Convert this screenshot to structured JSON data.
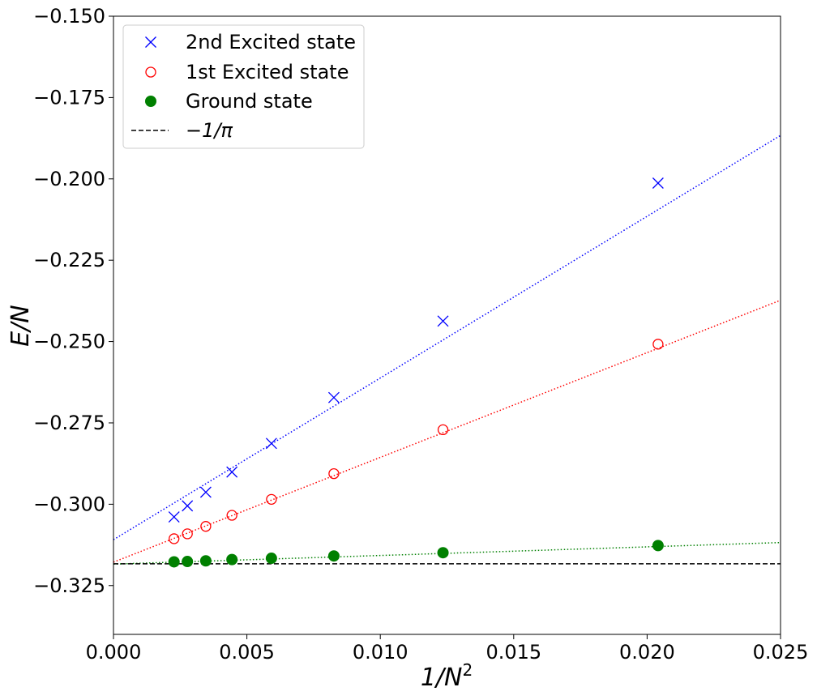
{
  "chart_data": {
    "type": "scatter",
    "xlabel": "1/N²",
    "ylabel": "E/N",
    "xlim": [
      0.0,
      0.025
    ],
    "ylim": [
      -0.34,
      -0.15
    ],
    "grid": false,
    "legend_position": "top-left",
    "x_ticks": [
      {
        "value": 0.0,
        "label": "0.000"
      },
      {
        "value": 0.005,
        "label": "0.005"
      },
      {
        "value": 0.01,
        "label": "0.010"
      },
      {
        "value": 0.015,
        "label": "0.015"
      },
      {
        "value": 0.02,
        "label": "0.020"
      },
      {
        "value": 0.025,
        "label": "0.025"
      }
    ],
    "y_ticks": [
      {
        "value": -0.15,
        "label": "−0.150"
      },
      {
        "value": -0.175,
        "label": "−0.175"
      },
      {
        "value": -0.2,
        "label": "−0.200"
      },
      {
        "value": -0.225,
        "label": "−0.225"
      },
      {
        "value": -0.25,
        "label": "−0.250"
      },
      {
        "value": -0.275,
        "label": "−0.275"
      },
      {
        "value": -0.3,
        "label": "−0.300"
      },
      {
        "value": -0.325,
        "label": "−0.325"
      }
    ],
    "series": [
      {
        "name": "2nd Excited state",
        "marker": "x",
        "color": "#0000ff",
        "x": [
          0.00227,
          0.00277,
          0.00346,
          0.00444,
          0.00592,
          0.00826,
          0.01235,
          0.02041
        ],
        "y": [
          -0.3039,
          -0.3005,
          -0.2963,
          -0.2901,
          -0.2813,
          -0.2672,
          -0.2437,
          -0.2013
        ],
        "fit": {
          "intercept": -0.3109,
          "slope": 4.97
        }
      },
      {
        "name": "1st Excited state",
        "marker": "o-open",
        "color": "#ff0000",
        "x": [
          0.00227,
          0.00277,
          0.00346,
          0.00444,
          0.00592,
          0.00826,
          0.01235,
          0.02041
        ],
        "y": [
          -0.3106,
          -0.3091,
          -0.3068,
          -0.3034,
          -0.2985,
          -0.2906,
          -0.2771,
          -0.2508
        ],
        "fit": {
          "intercept": -0.3178,
          "slope": 3.22
        }
      },
      {
        "name": "Ground state",
        "marker": "o-filled",
        "color": "#008000",
        "x": [
          0.00227,
          0.00277,
          0.00346,
          0.00444,
          0.00592,
          0.00826,
          0.01235,
          0.02041
        ],
        "y": [
          -0.3177,
          -0.3176,
          -0.3174,
          -0.317,
          -0.3166,
          -0.3159,
          -0.3149,
          -0.3127
        ],
        "fit": {
          "intercept": -0.3184,
          "slope": 0.265
        }
      }
    ],
    "reference_line": {
      "name": "−1/π",
      "y": -0.31831,
      "style": "dashed",
      "color": "#000000"
    }
  }
}
